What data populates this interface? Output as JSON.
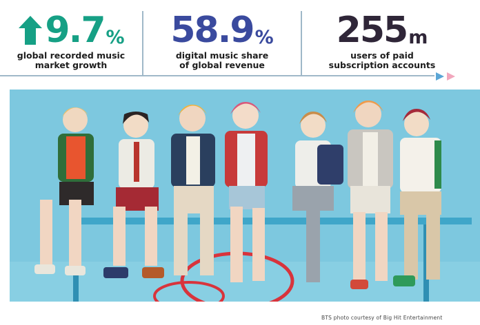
{
  "stats": [
    {
      "value": "9.7",
      "unit": "%",
      "line1": "global recorded music",
      "line2": "market growth",
      "color": "#16a085",
      "icon": "up-arrow-icon"
    },
    {
      "value": "58.9",
      "unit": "%",
      "line1": "digital music share",
      "line2": "of global revenue",
      "color": "#3a4a9e"
    },
    {
      "value": "255",
      "unit": "m",
      "line1": "users of paid",
      "line2": "subscription accounts",
      "color": "#2f2638"
    }
  ],
  "nav_arrows": {
    "colors": [
      "#5ba6d6",
      "#f2a7bd"
    ]
  },
  "photo": {
    "credit": "BTS photo courtesy of Big Hit Entertainment"
  }
}
